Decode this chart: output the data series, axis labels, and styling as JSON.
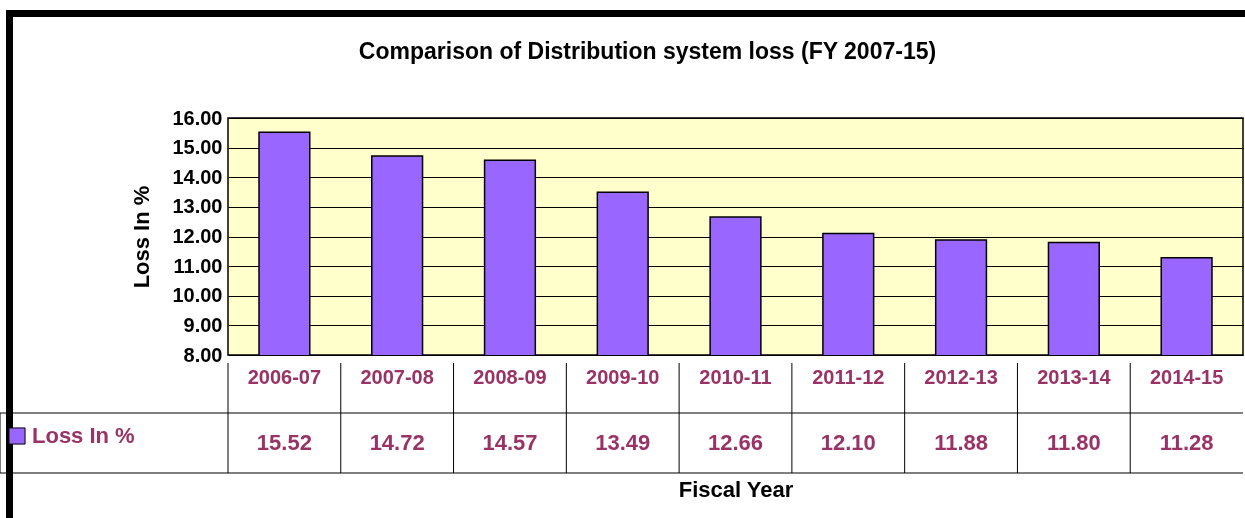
{
  "chart_data": {
    "type": "bar",
    "title": "Comparison of Distribution system loss  (FY 2007-15)",
    "xlabel": "Fiscal Year",
    "ylabel": "Loss In %",
    "categories": [
      "2006-07",
      "2007-08",
      "2008-09",
      "2009-10",
      "2010-11",
      "2011-12",
      "2012-13",
      "2013-14",
      "2014-15"
    ],
    "series": [
      {
        "name": "Loss In %",
        "color": "#9966ff",
        "values": [
          15.52,
          14.72,
          14.57,
          13.49,
          12.66,
          12.1,
          11.88,
          11.8,
          11.28
        ],
        "value_labels": [
          "15.52",
          "14.72",
          "14.57",
          "13.49",
          "12.66",
          "12.10",
          "11.88",
          "11.80",
          "11.28"
        ]
      }
    ],
    "ylim": [
      8,
      16
    ],
    "yticks": [
      {
        "value": 8,
        "label": "8.00"
      },
      {
        "value": 9,
        "label": "9.00"
      },
      {
        "value": 10,
        "label": "10.00"
      },
      {
        "value": 11,
        "label": "11.00"
      },
      {
        "value": 12,
        "label": "12.00"
      },
      {
        "value": 13,
        "label": "13.00"
      },
      {
        "value": 14,
        "label": "14.00"
      },
      {
        "value": 15,
        "label": "15.00"
      },
      {
        "value": 16,
        "label": "16.00"
      }
    ],
    "grid": "y",
    "legend": "bottom left"
  }
}
